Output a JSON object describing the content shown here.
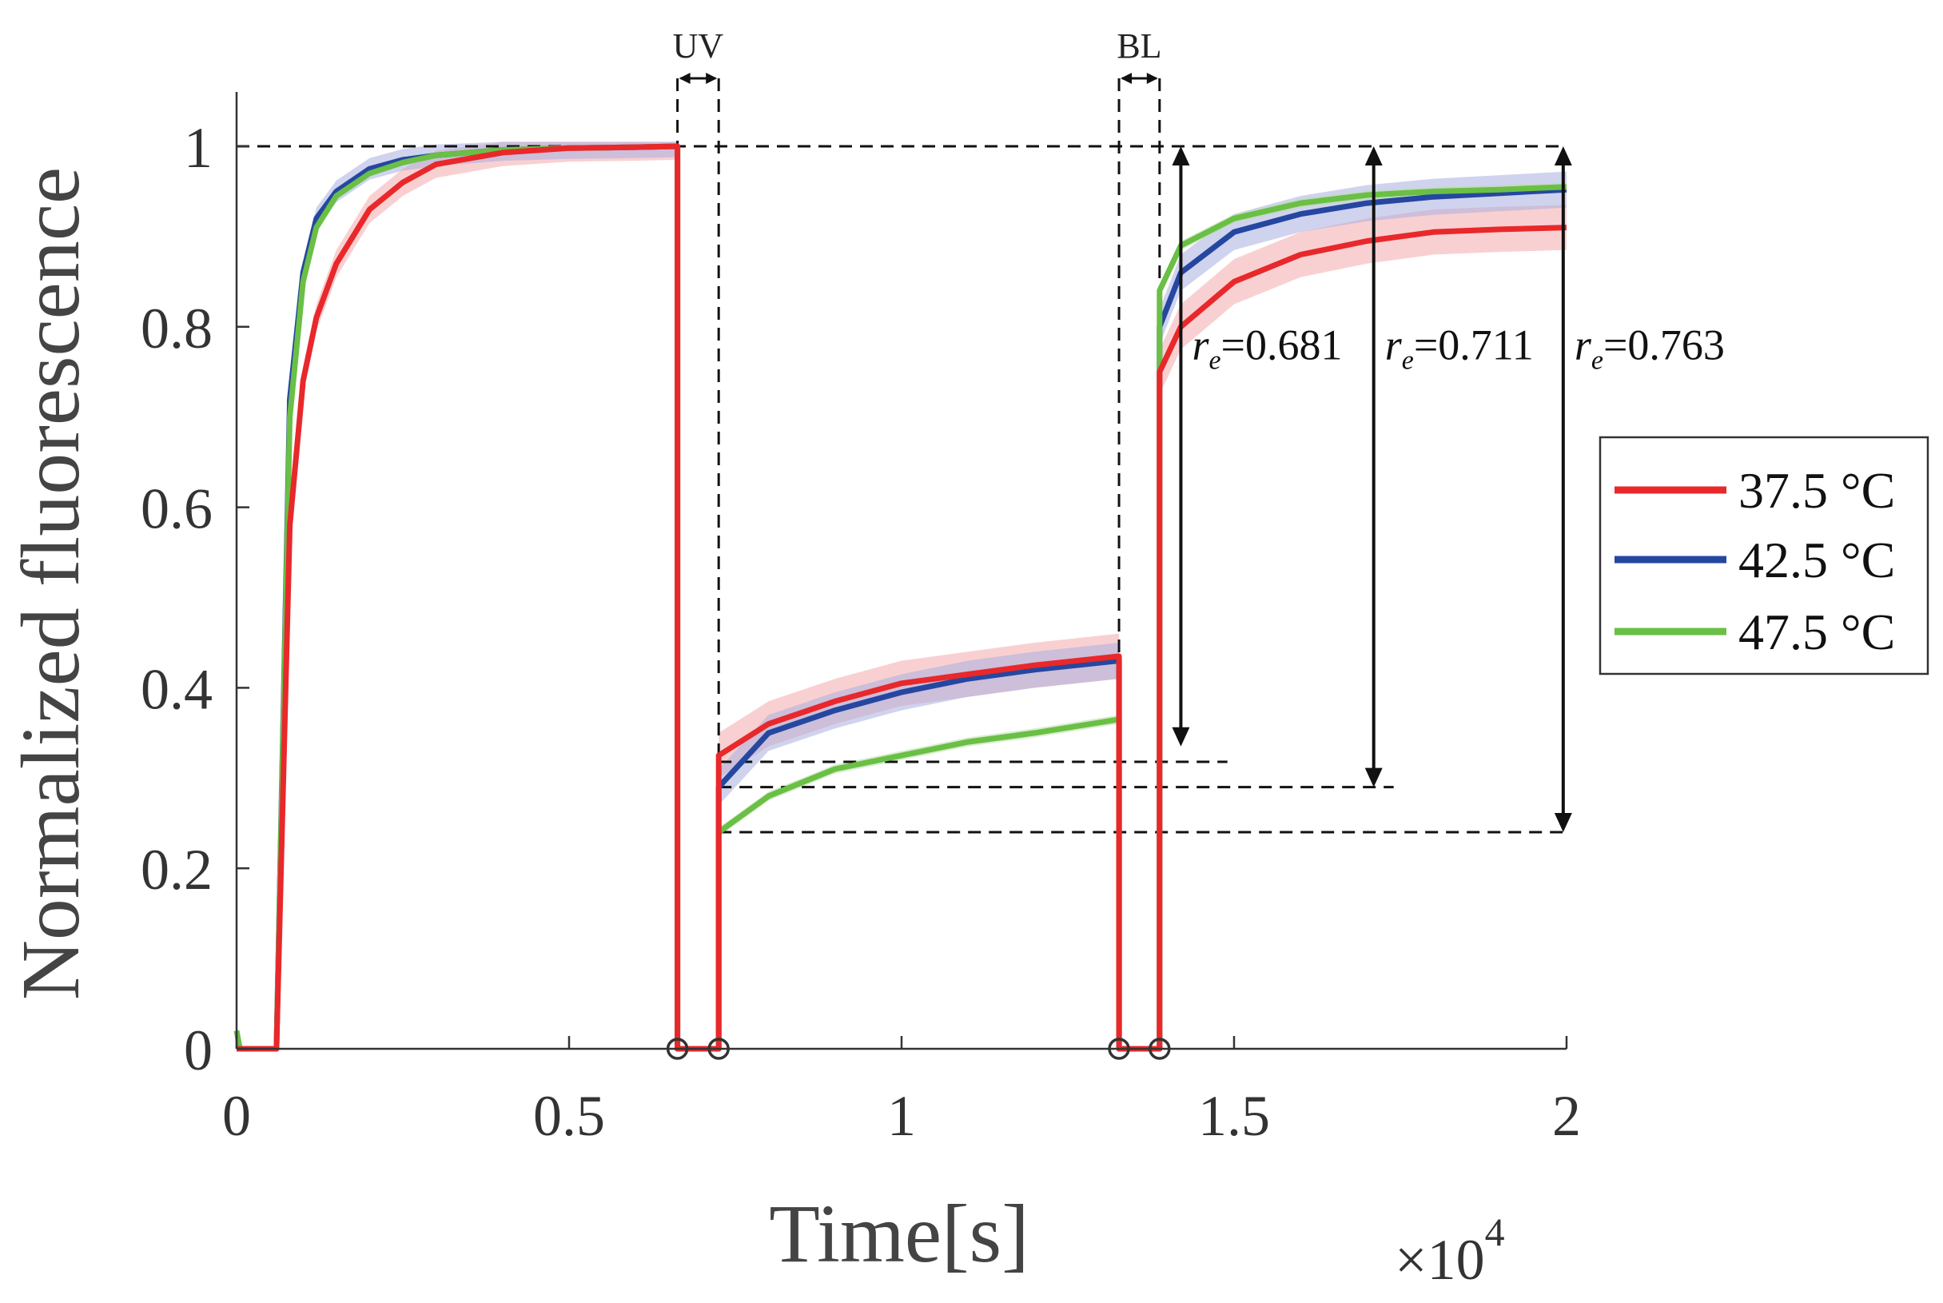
{
  "chart_data": {
    "type": "line",
    "title": "",
    "xlabel": "Time[s]",
    "ylabel": "Normalized fluorescence",
    "x_unit": "s",
    "x_scale_label": "×10",
    "x_scale_exponent": "4",
    "x_multiplier": 10000,
    "xlim": [
      0,
      2
    ],
    "ylim": [
      0,
      1.05
    ],
    "x_ticks": [
      0,
      0.5,
      1,
      1.5,
      2
    ],
    "x_tick_labels": [
      "0",
      "0.5",
      "1",
      "1.5",
      "2"
    ],
    "y_ticks": [
      0,
      0.2,
      0.4,
      0.6,
      0.8,
      1
    ],
    "y_tick_labels": [
      "0",
      "0.2",
      "0.4",
      "0.6",
      "0.8",
      "1"
    ],
    "grid": false,
    "legend_position": "right-outside",
    "phases": [
      {
        "label": "UV",
        "start": 0.663,
        "end": 0.725
      },
      {
        "label": "BL",
        "start": 1.327,
        "end": 1.388
      }
    ],
    "zero_markers_x": [
      0.663,
      0.725,
      1.327,
      1.388
    ],
    "series": [
      {
        "name": "37.5 °C",
        "color": "#e8282b",
        "band_color": "#f4a9ab",
        "x": [
          0,
          0.06,
          0.08,
          0.1,
          0.12,
          0.15,
          0.2,
          0.25,
          0.3,
          0.4,
          0.5,
          0.6,
          0.663,
          0.725,
          0.8,
          0.9,
          1.0,
          1.1,
          1.2,
          1.327,
          1.388,
          1.42,
          1.5,
          1.6,
          1.7,
          1.8,
          1.9,
          2.0
        ],
        "values": [
          0.0,
          0.0,
          0.58,
          0.74,
          0.81,
          0.87,
          0.93,
          0.96,
          0.98,
          0.993,
          0.998,
          0.999,
          1.0,
          0.325,
          0.36,
          0.385,
          0.405,
          0.415,
          0.425,
          0.435,
          0.75,
          0.8,
          0.85,
          0.88,
          0.895,
          0.905,
          0.908,
          0.91
        ],
        "band_halfwidth": 0.025
      },
      {
        "name": "42.5 °C",
        "color": "#2547a0",
        "band_color": "#a9aee0",
        "x": [
          0,
          0.06,
          0.08,
          0.1,
          0.12,
          0.15,
          0.2,
          0.25,
          0.3,
          0.4,
          0.5,
          0.6,
          0.663,
          0.725,
          0.8,
          0.9,
          1.0,
          1.1,
          1.2,
          1.327,
          1.388,
          1.42,
          1.5,
          1.6,
          1.7,
          1.8,
          1.9,
          2.0
        ],
        "values": [
          0.0,
          0.0,
          0.72,
          0.86,
          0.92,
          0.95,
          0.975,
          0.985,
          0.99,
          0.996,
          0.998,
          0.999,
          1.0,
          0.29,
          0.35,
          0.375,
          0.395,
          0.41,
          0.42,
          0.43,
          0.8,
          0.86,
          0.905,
          0.925,
          0.937,
          0.944,
          0.948,
          0.952
        ],
        "band_halfwidth": 0.02
      },
      {
        "name": "47.5 °C",
        "color": "#6abf45",
        "band_color": "#b9dfa8",
        "x": [
          0,
          0.005,
          0.06,
          0.08,
          0.1,
          0.12,
          0.15,
          0.2,
          0.25,
          0.3,
          0.4,
          0.5,
          0.6,
          0.663,
          0.725,
          0.8,
          0.9,
          1.0,
          1.1,
          1.2,
          1.327,
          1.388,
          1.42,
          1.5,
          1.6,
          1.7,
          1.8,
          1.9,
          2.0
        ],
        "values": [
          0.02,
          0.0,
          0.0,
          0.7,
          0.85,
          0.91,
          0.945,
          0.97,
          0.982,
          0.99,
          0.996,
          0.998,
          0.999,
          1.0,
          0.24,
          0.28,
          0.31,
          0.325,
          0.34,
          0.35,
          0.365,
          0.84,
          0.89,
          0.92,
          0.937,
          0.946,
          0.95,
          0.952,
          0.955
        ],
        "band_halfwidth": 0.005
      }
    ],
    "annotations": [
      {
        "symbol": "r",
        "subscript": "e",
        "text": "=0.681",
        "arrow_x": 1.42,
        "y_top": 1.0,
        "y_bottom": 0.335,
        "reference_y": 0.318
      },
      {
        "symbol": "r",
        "subscript": "e",
        "text": "=0.711",
        "arrow_x": 1.71,
        "y_top": 1.0,
        "y_bottom": 0.29,
        "reference_y": 0.29
      },
      {
        "symbol": "r",
        "subscript": "e",
        "text": "=0.763",
        "arrow_x": 1.995,
        "y_top": 1.0,
        "y_bottom": 0.24,
        "reference_y": 0.24
      }
    ]
  }
}
